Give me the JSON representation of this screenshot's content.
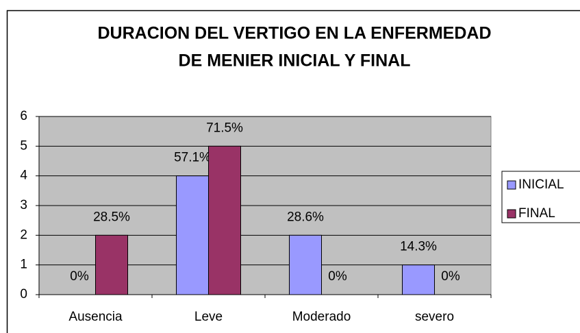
{
  "chart_data": {
    "type": "bar",
    "title": [
      "DURACION DEL VERTIGO EN LA ENFERMEDAD",
      "DE MENIER  INICIAL Y FINAL"
    ],
    "categories": [
      "Ausencia",
      "Leve",
      "Moderado",
      "severo"
    ],
    "series": [
      {
        "name": "INICIAL",
        "color": "#9999ff",
        "values": [
          0,
          4,
          2,
          1
        ],
        "annotations": [
          "0%",
          "57.1%",
          "28.6%",
          "14.3%"
        ]
      },
      {
        "name": "FINAL",
        "color": "#993366",
        "values": [
          2,
          5,
          0,
          0
        ],
        "annotations": [
          "28.5%",
          "71.5%",
          "0%",
          "0%"
        ]
      }
    ],
    "ylim": [
      0,
      6
    ],
    "yticks": [
      0,
      1,
      2,
      3,
      4,
      5,
      6
    ],
    "grid": true,
    "plot_background": "#c0c0c0",
    "legend": "right"
  }
}
